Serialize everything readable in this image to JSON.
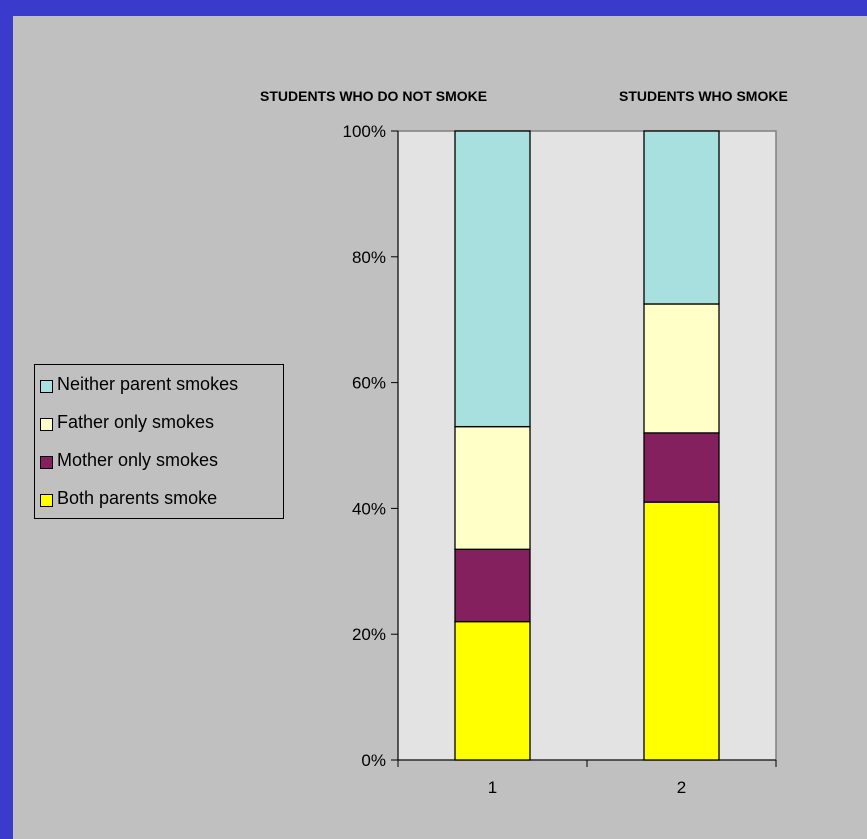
{
  "chart_data": {
    "type": "bar",
    "stacked": true,
    "percent_stacked": true,
    "titles": [
      "STUDENTS WHO DO NOT SMOKE",
      "STUDENTS WHO SMOKE"
    ],
    "categories": [
      "1",
      "2"
    ],
    "yticks": [
      "0%",
      "20%",
      "40%",
      "60%",
      "80%",
      "100%"
    ],
    "ylim": [
      0,
      100
    ],
    "series": [
      {
        "name": "Both parents smoke",
        "color": "#ffff00",
        "values": [
          22,
          41
        ]
      },
      {
        "name": "Mother only smokes",
        "color": "#85205e",
        "values": [
          11.5,
          11
        ]
      },
      {
        "name": "Father only smokes",
        "color": "#ffffc8",
        "values": [
          19.5,
          20.5
        ]
      },
      {
        "name": "Neither parent smokes",
        "color": "#a8e0e0",
        "values": [
          47,
          27.5
        ]
      }
    ],
    "legend_position": "left",
    "plot_background": "#e3e3e3",
    "frame_background": "#c0c0c0",
    "page_background": "#3a3acc"
  }
}
